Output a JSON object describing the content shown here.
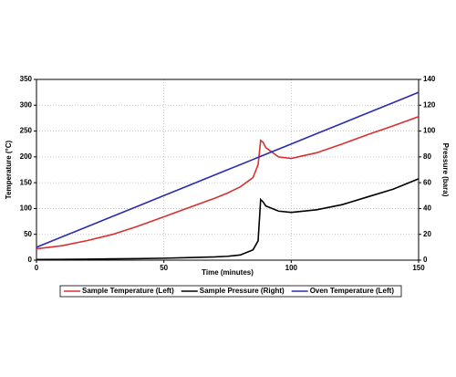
{
  "chart_data": {
    "type": "line",
    "x_label": "Time (minutes)",
    "y_label": "Temperature (°C)",
    "y2_label": "Pressure (bara)",
    "x": [
      0,
      10,
      20,
      30,
      40,
      50,
      60,
      70,
      75,
      80,
      85,
      87,
      88,
      89,
      90,
      95,
      100,
      110,
      120,
      130,
      140,
      150
    ],
    "series": [
      {
        "name": "Sample Temperature (Left)",
        "color": "#d93030",
        "axis": "y",
        "values": [
          22,
          28,
          38,
          50,
          66,
          84,
          102,
          120,
          130,
          142,
          160,
          185,
          232,
          228,
          218,
          200,
          197,
          208,
          225,
          243,
          260,
          278
        ]
      },
      {
        "name": "Sample Pressure (Right)",
        "color": "#000000",
        "axis": "y2",
        "values": [
          0.5,
          0.6,
          0.8,
          1,
          1.2,
          1.5,
          2,
          2.5,
          3,
          4,
          8,
          15,
          47,
          45,
          42,
          38,
          37,
          39,
          43,
          49,
          55,
          63
        ]
      },
      {
        "name": "Oven Temperature (Left)",
        "color": "#2b2bb0",
        "axis": "y",
        "values": [
          25,
          45,
          65,
          85,
          105,
          125,
          145,
          165,
          175,
          185,
          195,
          199,
          201,
          203,
          205,
          215,
          225,
          245,
          265,
          285,
          305,
          325
        ]
      }
    ],
    "xlim": [
      0,
      150
    ],
    "xticks": [
      0,
      50,
      100,
      150
    ],
    "ylim": [
      0,
      350
    ],
    "yticks": [
      0,
      50,
      100,
      150,
      200,
      250,
      300,
      350
    ],
    "y2lim": [
      0,
      140
    ],
    "y2ticks": [
      0,
      20,
      40,
      60,
      80,
      100,
      120,
      140
    ],
    "grid": true,
    "legend": "bottom"
  }
}
